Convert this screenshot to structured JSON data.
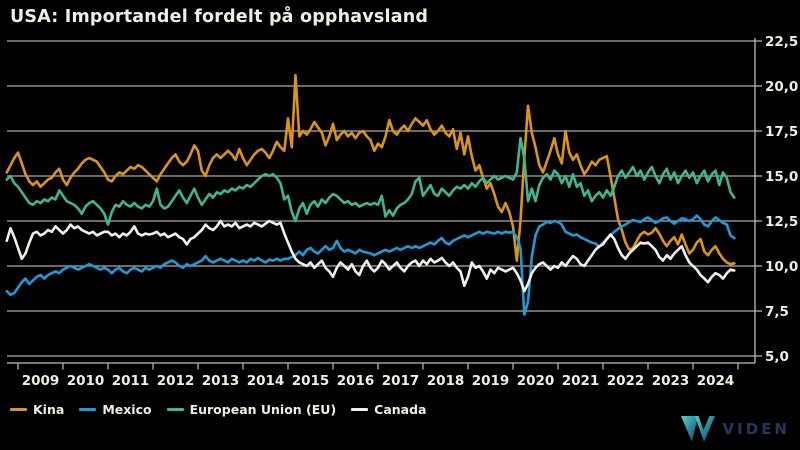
{
  "header": {
    "title": "USA: Importandel fordelt på opphavsland"
  },
  "colors": {
    "background": "#000000",
    "text": "#F0EDE2",
    "grid": "#ABABAB",
    "axis": "#BDBDBD"
  },
  "branding": {
    "logo_text": "VIDEN",
    "logo_text_color": "#20395C",
    "logo_icon": "viden-triangle-logo",
    "logo_gradient": [
      "#5FD0C0",
      "#2A8BA0",
      "#16314F"
    ]
  },
  "chart_data": {
    "type": "line",
    "title": "USA: Importandel fordelt på opphavsland",
    "frequency": "monthly",
    "x_start": "2008-10",
    "x_end": "2024-12",
    "ylim": [
      5,
      22.5
    ],
    "y_step": 2.5,
    "grid": true,
    "y_axis_side": "right",
    "legend_position": "bottom-left",
    "y_tick_labels": [
      "22,5",
      "20,0",
      "17,5",
      "15,0",
      "12,5",
      "10,0",
      "7,5",
      "5,0"
    ],
    "x_tick_labels": [
      "2009",
      "2010",
      "2011",
      "2012",
      "2013",
      "2014",
      "2015",
      "2016",
      "2017",
      "2018",
      "2019",
      "2020",
      "2021",
      "2022",
      "2023",
      "2024"
    ],
    "series": [
      {
        "name": "Kina",
        "color": "#DC9512",
        "values": [
          15.2,
          15.6,
          16.0,
          16.3,
          15.7,
          15.1,
          14.7,
          14.5,
          14.7,
          14.4,
          14.6,
          14.8,
          14.9,
          15.2,
          15.4,
          14.8,
          14.5,
          14.9,
          15.2,
          15.4,
          15.7,
          15.9,
          16.0,
          15.9,
          15.8,
          15.5,
          15.2,
          14.8,
          14.7,
          15.0,
          15.2,
          15.1,
          15.3,
          15.5,
          15.4,
          15.6,
          15.5,
          15.3,
          15.1,
          14.9,
          14.7,
          15.1,
          15.4,
          15.7,
          16.0,
          16.2,
          15.8,
          15.6,
          15.8,
          16.2,
          16.7,
          16.4,
          15.3,
          15.0,
          15.6,
          16.0,
          16.2,
          16.0,
          16.2,
          16.4,
          16.2,
          15.9,
          16.5,
          16.0,
          15.6,
          15.9,
          16.2,
          16.4,
          16.5,
          16.3,
          16.0,
          16.4,
          16.9,
          16.6,
          16.4,
          18.2,
          16.6,
          20.6,
          17.2,
          17.5,
          17.3,
          17.6,
          18.0,
          17.7,
          17.4,
          16.7,
          17.2,
          17.9,
          17.0,
          17.3,
          17.5,
          17.2,
          17.4,
          17.1,
          17.4,
          17.5,
          17.2,
          17.0,
          16.4,
          16.8,
          16.6,
          17.2,
          18.1,
          17.5,
          17.3,
          17.6,
          17.8,
          17.5,
          17.9,
          18.2,
          18.0,
          17.8,
          18.1,
          17.6,
          17.3,
          17.5,
          17.8,
          17.4,
          17.2,
          17.6,
          16.5,
          17.4,
          16.2,
          17.2,
          16.1,
          15.3,
          15.6,
          14.9,
          14.3,
          14.6,
          14.0,
          13.3,
          13.0,
          13.5,
          13.0,
          12.2,
          10.3,
          12.5,
          16.0,
          18.9,
          17.4,
          16.6,
          15.6,
          15.2,
          15.8,
          16.4,
          17.1,
          16.2,
          15.7,
          17.5,
          16.3,
          15.9,
          16.2,
          15.6,
          15.1,
          15.4,
          15.8,
          15.6,
          15.9,
          16.0,
          16.1,
          15.0,
          13.8,
          12.6,
          12.0,
          11.3,
          10.9,
          11.0,
          11.4,
          11.75,
          11.9,
          11.75,
          11.85,
          12.1,
          11.8,
          11.4,
          11.1,
          11.4,
          11.6,
          11.2,
          11.75,
          11.2,
          10.7,
          10.9,
          11.3,
          11.5,
          10.8,
          10.6,
          10.9,
          11.1,
          10.7,
          10.4,
          10.2,
          10.1,
          10.15
        ]
      },
      {
        "name": "Mexico",
        "color": "#1E9AD6",
        "values": [
          8.6,
          8.4,
          8.5,
          8.8,
          9.1,
          9.3,
          9.0,
          9.2,
          9.4,
          9.5,
          9.3,
          9.5,
          9.6,
          9.7,
          9.6,
          9.8,
          9.9,
          10.0,
          9.9,
          9.8,
          9.9,
          10.0,
          10.1,
          10.0,
          9.9,
          9.8,
          9.9,
          9.8,
          9.6,
          9.8,
          9.9,
          9.7,
          9.6,
          9.8,
          9.9,
          9.8,
          9.7,
          9.9,
          9.8,
          9.9,
          10.0,
          9.9,
          10.1,
          10.2,
          10.3,
          10.2,
          10.0,
          9.9,
          10.1,
          10.0,
          10.1,
          10.2,
          10.3,
          10.55,
          10.3,
          10.2,
          10.3,
          10.4,
          10.3,
          10.2,
          10.4,
          10.3,
          10.2,
          10.3,
          10.2,
          10.4,
          10.3,
          10.45,
          10.3,
          10.2,
          10.35,
          10.3,
          10.4,
          10.3,
          10.4,
          10.4,
          10.5,
          10.6,
          10.8,
          10.6,
          10.9,
          11.0,
          10.8,
          10.7,
          10.9,
          11.1,
          10.9,
          11.0,
          11.4,
          11.0,
          10.8,
          10.9,
          10.8,
          10.7,
          10.9,
          10.8,
          10.75,
          10.7,
          10.6,
          10.7,
          10.8,
          10.9,
          10.8,
          10.9,
          11.0,
          10.9,
          11.0,
          11.1,
          11.0,
          11.1,
          11.0,
          11.1,
          11.2,
          11.3,
          11.2,
          11.4,
          11.55,
          11.3,
          11.2,
          11.4,
          11.5,
          11.6,
          11.7,
          11.6,
          11.7,
          11.8,
          11.9,
          11.8,
          11.9,
          11.85,
          11.8,
          11.9,
          11.8,
          11.9,
          11.85,
          11.9,
          11.6,
          11.0,
          7.3,
          8.0,
          10.5,
          11.7,
          12.2,
          12.3,
          12.45,
          12.4,
          12.5,
          12.45,
          12.3,
          11.9,
          11.8,
          11.7,
          11.75,
          11.6,
          11.5,
          11.4,
          11.3,
          11.25,
          11.05,
          11.3,
          11.5,
          11.7,
          11.9,
          12.05,
          12.2,
          12.3,
          12.45,
          12.55,
          12.5,
          12.45,
          12.6,
          12.7,
          12.55,
          12.4,
          12.5,
          12.65,
          12.7,
          12.5,
          12.35,
          12.5,
          12.65,
          12.6,
          12.5,
          12.6,
          12.8,
          12.6,
          12.3,
          12.2,
          12.5,
          12.7,
          12.55,
          12.4,
          12.3,
          11.7,
          11.55
        ]
      },
      {
        "name": "European Union (EU)",
        "color": "#3EB694",
        "values": [
          14.8,
          15.0,
          14.6,
          14.4,
          14.1,
          13.8,
          13.5,
          13.4,
          13.6,
          13.5,
          13.7,
          13.6,
          13.8,
          13.7,
          14.2,
          13.9,
          13.6,
          13.5,
          13.4,
          13.2,
          12.9,
          13.3,
          13.5,
          13.6,
          13.4,
          13.2,
          12.9,
          12.3,
          13.0,
          13.4,
          13.3,
          13.6,
          13.4,
          13.3,
          13.5,
          13.3,
          13.2,
          13.4,
          13.3,
          13.6,
          14.3,
          13.4,
          13.2,
          13.3,
          13.6,
          13.9,
          14.2,
          13.8,
          13.5,
          13.9,
          14.3,
          13.8,
          13.4,
          13.7,
          14.0,
          13.8,
          14.1,
          14.0,
          14.2,
          14.1,
          14.3,
          14.2,
          14.4,
          14.3,
          14.5,
          14.4,
          14.6,
          14.8,
          15.0,
          15.1,
          15.0,
          15.1,
          14.9,
          14.6,
          13.7,
          13.9,
          13.0,
          12.5,
          13.2,
          13.5,
          12.9,
          13.4,
          13.6,
          13.3,
          13.7,
          13.5,
          13.8,
          14.0,
          13.9,
          13.7,
          13.5,
          13.6,
          13.4,
          13.5,
          13.3,
          13.4,
          13.5,
          13.4,
          13.5,
          13.4,
          13.9,
          12.75,
          13.1,
          12.8,
          13.2,
          13.4,
          13.5,
          13.7,
          14.0,
          14.7,
          14.9,
          13.9,
          14.2,
          14.5,
          14.0,
          13.9,
          14.3,
          14.1,
          13.9,
          14.2,
          14.4,
          14.3,
          14.5,
          14.3,
          14.6,
          14.4,
          14.7,
          14.9,
          14.6,
          14.8,
          15.0,
          14.8,
          14.9,
          15.0,
          14.9,
          14.8,
          15.2,
          17.1,
          16.0,
          13.6,
          14.3,
          13.6,
          14.5,
          14.9,
          15.1,
          14.8,
          15.3,
          15.1,
          14.6,
          15.0,
          14.4,
          15.1,
          14.4,
          14.6,
          13.9,
          14.2,
          13.6,
          13.9,
          14.1,
          13.8,
          14.2,
          13.9,
          14.4,
          15.0,
          15.3,
          14.9,
          15.2,
          15.5,
          15.0,
          15.3,
          14.8,
          15.2,
          15.5,
          15.0,
          14.6,
          15.1,
          15.4,
          14.8,
          15.2,
          14.6,
          15.0,
          15.3,
          14.9,
          15.2,
          14.6,
          15.0,
          15.3,
          14.7,
          15.1,
          15.3,
          14.5,
          15.2,
          14.9,
          14.1,
          13.8
        ]
      },
      {
        "name": "Canada",
        "color": "#F2F0E5",
        "values": [
          11.4,
          12.1,
          11.6,
          11.0,
          10.4,
          10.7,
          11.3,
          11.8,
          11.9,
          11.7,
          11.8,
          12.0,
          11.9,
          12.2,
          12.0,
          11.8,
          12.0,
          12.3,
          12.1,
          12.2,
          12.0,
          11.9,
          11.8,
          11.9,
          11.7,
          11.8,
          11.9,
          11.9,
          11.7,
          11.8,
          11.6,
          11.8,
          11.7,
          11.9,
          12.2,
          11.8,
          11.7,
          11.8,
          11.75,
          11.8,
          11.9,
          11.7,
          11.8,
          11.6,
          11.7,
          11.8,
          11.6,
          11.5,
          11.2,
          11.5,
          11.6,
          11.8,
          12.0,
          12.3,
          12.1,
          12.0,
          12.2,
          12.5,
          12.2,
          12.3,
          12.2,
          12.4,
          12.1,
          12.2,
          12.3,
          12.2,
          12.4,
          12.3,
          12.2,
          12.35,
          12.5,
          12.4,
          12.3,
          12.4,
          11.8,
          11.3,
          10.8,
          10.4,
          10.2,
          10.1,
          10.0,
          10.2,
          9.9,
          10.1,
          10.3,
          9.9,
          9.7,
          9.4,
          9.9,
          10.2,
          10.0,
          9.8,
          10.1,
          9.7,
          9.5,
          10.0,
          10.3,
          9.9,
          9.7,
          9.9,
          10.3,
          10.1,
          9.8,
          10.0,
          10.2,
          9.9,
          9.7,
          10.0,
          10.2,
          10.3,
          10.0,
          10.3,
          10.1,
          10.4,
          10.2,
          10.3,
          10.45,
          10.2,
          10.0,
          10.2,
          9.9,
          9.7,
          8.9,
          9.4,
          10.2,
          9.9,
          10.0,
          9.7,
          9.3,
          9.8,
          9.6,
          9.9,
          9.8,
          9.7,
          9.8,
          9.9,
          9.6,
          9.2,
          8.6,
          9.0,
          9.6,
          9.9,
          10.1,
          10.2,
          10.0,
          9.8,
          10.0,
          9.9,
          10.2,
          10.0,
          10.3,
          10.55,
          10.4,
          10.1,
          10.0,
          10.3,
          10.6,
          10.9,
          11.1,
          11.2,
          11.5,
          11.75,
          11.5,
          11.0,
          10.6,
          10.4,
          10.7,
          10.9,
          11.1,
          11.3,
          11.25,
          11.3,
          11.1,
          10.9,
          10.5,
          10.3,
          10.6,
          10.4,
          10.7,
          10.9,
          11.1,
          10.6,
          10.2,
          10.0,
          9.8,
          9.5,
          9.3,
          9.1,
          9.4,
          9.6,
          9.5,
          9.3,
          9.6,
          9.8,
          9.75
        ]
      }
    ]
  }
}
